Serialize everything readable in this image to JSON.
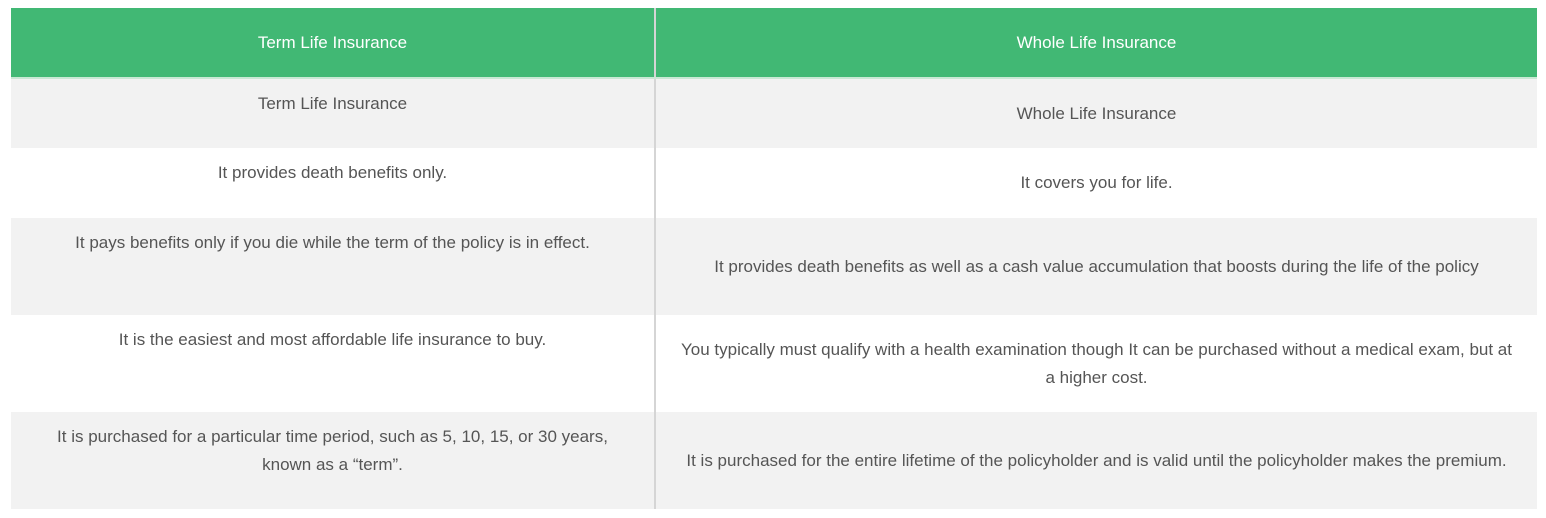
{
  "table": {
    "headers": [
      "Term Life Insurance",
      "Whole Life Insurance"
    ],
    "rows": [
      [
        "Term Life Insurance",
        "Whole Life Insurance"
      ],
      [
        "It provides death benefits only.",
        "It covers you for life."
      ],
      [
        "It pays benefits only if you die while the term of the policy is in effect.",
        "It provides death benefits as well as a cash value accumulation that boosts during the life of the policy"
      ],
      [
        "It is the easiest and most affordable life insurance to buy.",
        "You typically must qualify with a health examination though It can be purchased without a medical exam, but at a higher cost."
      ],
      [
        "It is purchased for a particular time period, such as 5, 10, 15, or 30 years, known as a “term”.",
        "It is purchased for the entire lifetime of the policyholder and is valid until the policyholder makes the premium."
      ]
    ]
  },
  "colors": {
    "header_bg": "#41b874",
    "stripe_bg": "#f2f2f2",
    "text": "#555555"
  }
}
